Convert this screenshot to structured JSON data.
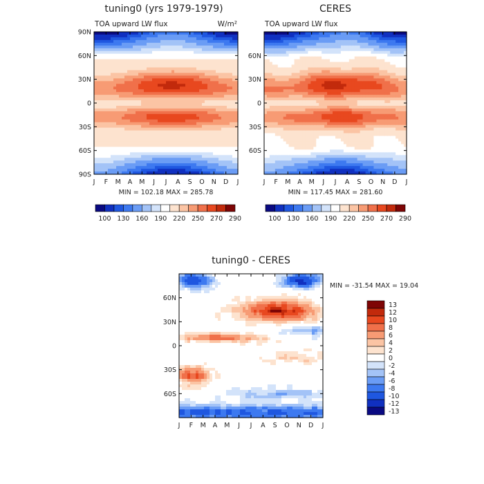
{
  "chart_data": [
    {
      "type": "heatmap",
      "title": "tuning0 (yrs 1979-1979)",
      "left_label": "TOA upward LW flux",
      "units_label": "W/m²",
      "x_ticks": [
        "J",
        "F",
        "M",
        "A",
        "M",
        "J",
        "J",
        "A",
        "S",
        "O",
        "N",
        "D",
        "J"
      ],
      "y_ticks": [
        "90N",
        "60N",
        "30N",
        "0",
        "30S",
        "60S",
        "90S"
      ],
      "y_tick_values": [
        90,
        60,
        30,
        0,
        -30,
        -60,
        -90
      ],
      "ylim": [
        -90,
        90
      ],
      "min_max_text": "MIN = 102.18  MAX = 285.78",
      "min": 102.18,
      "max": 285.78,
      "colorbar": {
        "orientation": "horizontal",
        "labels": [
          "100",
          "130",
          "160",
          "190",
          "220",
          "250",
          "270",
          "290"
        ]
      }
    },
    {
      "type": "heatmap",
      "title": "CERES",
      "left_label": "TOA upward LW flux",
      "x_ticks": [
        "J",
        "F",
        "M",
        "A",
        "M",
        "J",
        "J",
        "A",
        "S",
        "O",
        "N",
        "D",
        "J"
      ],
      "y_ticks": [
        "60N",
        "30N",
        "0",
        "30S",
        "60S"
      ],
      "y_tick_values": [
        60,
        30,
        0,
        -30,
        -60
      ],
      "ylim": [
        -90,
        90
      ],
      "min_max_text": "MIN = 117.45  MAX = 281.60",
      "min": 117.45,
      "max": 281.6,
      "colorbar": {
        "orientation": "horizontal",
        "labels": [
          "100",
          "130",
          "160",
          "190",
          "220",
          "250",
          "270",
          "290"
        ]
      }
    },
    {
      "type": "heatmap",
      "title": "tuning0 - CERES",
      "x_ticks": [
        "J",
        "F",
        "M",
        "A",
        "M",
        "J",
        "J",
        "A",
        "S",
        "O",
        "N",
        "D",
        "J"
      ],
      "y_ticks": [
        "60N",
        "30N",
        "0",
        "30S",
        "60S"
      ],
      "y_tick_values": [
        60,
        30,
        0,
        -30,
        -60
      ],
      "ylim": [
        -90,
        90
      ],
      "min_max_text": "MIN = -31.54  MAX =  19.04",
      "min": -31.54,
      "max": 19.04,
      "colorbar": {
        "orientation": "vertical",
        "labels": [
          "13",
          "12",
          "10",
          "8",
          "6",
          "4",
          "2",
          "0",
          "-2",
          "-4",
          "-6",
          "-8",
          "-10",
          "-12",
          "-13"
        ]
      }
    }
  ],
  "palette": [
    "#0a0a82",
    "#1030c0",
    "#1f57e0",
    "#3d79f0",
    "#6a9cf5",
    "#a3c3f7",
    "#d3e3fa",
    "#ffffff",
    "#fde3cf",
    "#fbc4a4",
    "#f79b74",
    "#f0704a",
    "#e8481f",
    "#c22a0c",
    "#7e0505"
  ]
}
